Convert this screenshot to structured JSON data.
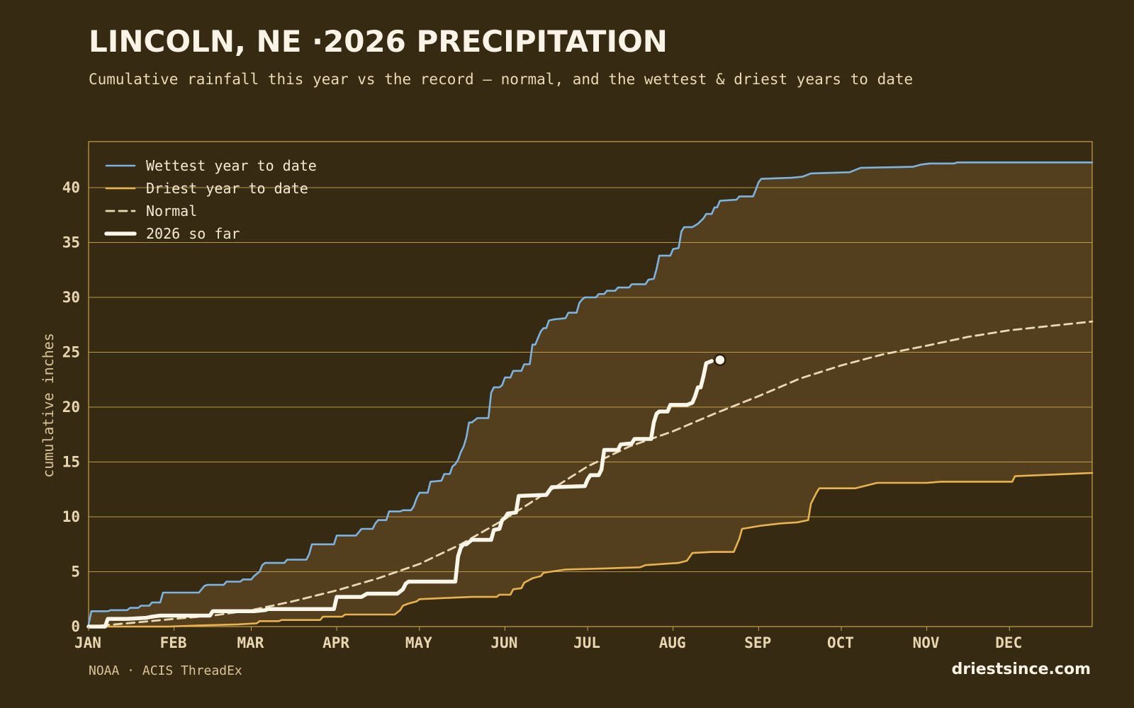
{
  "header": {
    "title": "LINCOLN, NE ·2026 PRECIPITATION",
    "subtitle": "Cumulative rainfall this year vs the record — normal, and the wettest & driest years to date"
  },
  "footer": {
    "source": "NOAA · ACIS ThreadEx",
    "site": "driestsince.com"
  },
  "colors": {
    "background": "#372a13",
    "band": "#533f1e",
    "grid": "#c9a24a",
    "wettest": "#7db3e0",
    "driest": "#e8b34f",
    "normal": "#e9d9b4",
    "current": "#fbf6ea"
  },
  "chart_data": {
    "type": "line",
    "title": "LINCOLN, NE ·2026 PRECIPITATION",
    "xlabel": "",
    "ylabel": "cumulative inches",
    "x_unit": "day of year",
    "xlim": [
      1,
      365
    ],
    "ylim": [
      0,
      40
    ],
    "y_ticks": [
      0,
      5,
      10,
      15,
      20,
      25,
      30,
      35,
      40
    ],
    "x_ticks": [
      {
        "day": 1,
        "label": "JAN"
      },
      {
        "day": 32,
        "label": "FEB"
      },
      {
        "day": 60,
        "label": "MAR"
      },
      {
        "day": 91,
        "label": "APR"
      },
      {
        "day": 121,
        "label": "MAY"
      },
      {
        "day": 152,
        "label": "JUN"
      },
      {
        "day": 182,
        "label": "JUL"
      },
      {
        "day": 213,
        "label": "AUG"
      },
      {
        "day": 244,
        "label": "SEP"
      },
      {
        "day": 274,
        "label": "OCT"
      },
      {
        "day": 305,
        "label": "NOV"
      },
      {
        "day": 335,
        "label": "DEC"
      }
    ],
    "grid": true,
    "legend_position": "top-left",
    "series": [
      {
        "name": "Wettest year to date",
        "style": "solid",
        "points": [
          [
            1,
            0.2
          ],
          [
            2,
            1.4
          ],
          [
            8,
            1.4
          ],
          [
            9,
            1.5
          ],
          [
            15,
            1.5
          ],
          [
            16,
            1.7
          ],
          [
            19,
            1.7
          ],
          [
            20,
            1.9
          ],
          [
            23,
            1.9
          ],
          [
            24,
            2.2
          ],
          [
            27,
            2.2
          ],
          [
            28,
            3.1
          ],
          [
            41,
            3.1
          ],
          [
            42,
            3.4
          ],
          [
            43,
            3.7
          ],
          [
            44,
            3.8
          ],
          [
            50,
            3.8
          ],
          [
            51,
            4.1
          ],
          [
            56,
            4.1
          ],
          [
            57,
            4.3
          ],
          [
            60,
            4.3
          ],
          [
            61,
            4.6
          ],
          [
            63,
            5.0
          ],
          [
            64,
            5.6
          ],
          [
            65,
            5.8
          ],
          [
            72,
            5.8
          ],
          [
            73,
            6.1
          ],
          [
            80,
            6.1
          ],
          [
            81,
            6.6
          ],
          [
            82,
            7.5
          ],
          [
            90,
            7.5
          ],
          [
            91,
            8.3
          ],
          [
            98,
            8.3
          ],
          [
            99,
            8.6
          ],
          [
            100,
            8.9
          ],
          [
            104,
            8.9
          ],
          [
            105,
            9.4
          ],
          [
            106,
            9.7
          ],
          [
            109,
            9.7
          ],
          [
            110,
            10.5
          ],
          [
            114,
            10.5
          ],
          [
            115,
            10.6
          ],
          [
            118,
            10.6
          ],
          [
            119,
            11.0
          ],
          [
            120,
            11.7
          ],
          [
            121,
            12.2
          ],
          [
            124,
            12.2
          ],
          [
            125,
            13.2
          ],
          [
            129,
            13.3
          ],
          [
            130,
            13.9
          ],
          [
            132,
            13.9
          ],
          [
            133,
            14.6
          ],
          [
            134,
            14.8
          ],
          [
            135,
            15.2
          ],
          [
            136,
            15.9
          ],
          [
            137,
            16.4
          ],
          [
            138,
            17.2
          ],
          [
            139,
            18.6
          ],
          [
            140,
            18.6
          ],
          [
            141,
            18.8
          ],
          [
            142,
            19.0
          ],
          [
            146,
            19.0
          ],
          [
            147,
            21.3
          ],
          [
            148,
            21.8
          ],
          [
            150,
            21.8
          ],
          [
            151,
            22.0
          ],
          [
            152,
            22.7
          ],
          [
            154,
            22.7
          ],
          [
            155,
            23.3
          ],
          [
            158,
            23.3
          ],
          [
            159,
            23.9
          ],
          [
            161,
            23.9
          ],
          [
            162,
            25.7
          ],
          [
            163,
            25.7
          ],
          [
            164,
            26.3
          ],
          [
            165,
            26.9
          ],
          [
            166,
            27.2
          ],
          [
            167,
            27.2
          ],
          [
            168,
            27.9
          ],
          [
            170,
            28.0
          ],
          [
            174,
            28.1
          ],
          [
            175,
            28.6
          ],
          [
            178,
            28.6
          ],
          [
            179,
            29.5
          ],
          [
            180,
            29.8
          ],
          [
            181,
            30.0
          ],
          [
            185,
            30.0
          ],
          [
            186,
            30.3
          ],
          [
            188,
            30.3
          ],
          [
            189,
            30.6
          ],
          [
            192,
            30.6
          ],
          [
            193,
            30.9
          ],
          [
            197,
            30.9
          ],
          [
            198,
            31.2
          ],
          [
            203,
            31.2
          ],
          [
            204,
            31.6
          ],
          [
            206,
            31.7
          ],
          [
            207,
            32.6
          ],
          [
            208,
            33.8
          ],
          [
            212,
            33.8
          ],
          [
            213,
            34.4
          ],
          [
            215,
            34.5
          ],
          [
            216,
            36.0
          ],
          [
            217,
            36.4
          ],
          [
            220,
            36.4
          ],
          [
            222,
            36.7
          ],
          [
            224,
            37.2
          ],
          [
            225,
            37.6
          ],
          [
            227,
            37.6
          ],
          [
            228,
            38.2
          ],
          [
            229,
            38.2
          ],
          [
            230,
            38.8
          ],
          [
            236,
            38.9
          ],
          [
            237,
            39.2
          ],
          [
            242,
            39.2
          ],
          [
            243,
            39.8
          ],
          [
            244,
            40.5
          ],
          [
            245,
            40.8
          ],
          [
            256,
            40.9
          ],
          [
            260,
            41.0
          ],
          [
            263,
            41.3
          ],
          [
            277,
            41.4
          ],
          [
            281,
            41.8
          ],
          [
            300,
            41.9
          ],
          [
            303,
            42.1
          ],
          [
            306,
            42.2
          ],
          [
            315,
            42.2
          ],
          [
            316,
            42.3
          ],
          [
            365,
            42.3
          ]
        ]
      },
      {
        "name": "Driest year to date",
        "style": "solid",
        "points": [
          [
            1,
            0.0
          ],
          [
            30,
            0.0
          ],
          [
            40,
            0.1
          ],
          [
            55,
            0.2
          ],
          [
            62,
            0.3
          ],
          [
            63,
            0.5
          ],
          [
            70,
            0.5
          ],
          [
            71,
            0.6
          ],
          [
            85,
            0.6
          ],
          [
            86,
            0.9
          ],
          [
            93,
            0.9
          ],
          [
            94,
            1.1
          ],
          [
            112,
            1.1
          ],
          [
            114,
            1.5
          ],
          [
            115,
            1.9
          ],
          [
            117,
            2.1
          ],
          [
            120,
            2.3
          ],
          [
            121,
            2.5
          ],
          [
            130,
            2.6
          ],
          [
            140,
            2.7
          ],
          [
            149,
            2.7
          ],
          [
            150,
            2.9
          ],
          [
            154,
            2.9
          ],
          [
            155,
            3.4
          ],
          [
            158,
            3.5
          ],
          [
            159,
            4.0
          ],
          [
            162,
            4.4
          ],
          [
            165,
            4.6
          ],
          [
            166,
            4.9
          ],
          [
            174,
            5.2
          ],
          [
            188,
            5.3
          ],
          [
            201,
            5.4
          ],
          [
            203,
            5.6
          ],
          [
            215,
            5.8
          ],
          [
            218,
            6.0
          ],
          [
            220,
            6.7
          ],
          [
            227,
            6.8
          ],
          [
            235,
            6.8
          ],
          [
            237,
            8.0
          ],
          [
            238,
            8.9
          ],
          [
            245,
            9.2
          ],
          [
            252,
            9.4
          ],
          [
            258,
            9.5
          ],
          [
            262,
            9.7
          ],
          [
            263,
            11.2
          ],
          [
            265,
            12.2
          ],
          [
            266,
            12.6
          ],
          [
            279,
            12.6
          ],
          [
            287,
            13.1
          ],
          [
            305,
            13.1
          ],
          [
            310,
            13.2
          ],
          [
            336,
            13.2
          ],
          [
            337,
            13.7
          ],
          [
            365,
            14.0
          ]
        ]
      },
      {
        "name": "Normal",
        "style": "dashed",
        "points": [
          [
            1,
            0.0
          ],
          [
            15,
            0.3
          ],
          [
            32,
            0.7
          ],
          [
            46,
            1.0
          ],
          [
            60,
            1.5
          ],
          [
            75,
            2.3
          ],
          [
            91,
            3.3
          ],
          [
            106,
            4.4
          ],
          [
            121,
            5.7
          ],
          [
            136,
            7.5
          ],
          [
            152,
            9.8
          ],
          [
            167,
            12.2
          ],
          [
            182,
            14.6
          ],
          [
            197,
            16.4
          ],
          [
            213,
            17.8
          ],
          [
            228,
            19.4
          ],
          [
            244,
            21.0
          ],
          [
            259,
            22.6
          ],
          [
            274,
            23.8
          ],
          [
            289,
            24.8
          ],
          [
            305,
            25.6
          ],
          [
            320,
            26.4
          ],
          [
            335,
            27.0
          ],
          [
            350,
            27.4
          ],
          [
            365,
            27.8
          ]
        ]
      },
      {
        "name": "2026 so far",
        "style": "bold",
        "points": [
          [
            1,
            0.0
          ],
          [
            7,
            0.0
          ],
          [
            8,
            0.7
          ],
          [
            15,
            0.7
          ],
          [
            22,
            0.8
          ],
          [
            24,
            0.9
          ],
          [
            27,
            1.0
          ],
          [
            35,
            1.0
          ],
          [
            45,
            1.0
          ],
          [
            46,
            1.4
          ],
          [
            61,
            1.4
          ],
          [
            65,
            1.5
          ],
          [
            66,
            1.6
          ],
          [
            90,
            1.6
          ],
          [
            91,
            2.7
          ],
          [
            100,
            2.7
          ],
          [
            102,
            3.0
          ],
          [
            113,
            3.0
          ],
          [
            115,
            3.4
          ],
          [
            116,
            3.9
          ],
          [
            117,
            4.1
          ],
          [
            134,
            4.1
          ],
          [
            135,
            6.4
          ],
          [
            136,
            7.2
          ],
          [
            137,
            7.5
          ],
          [
            138,
            7.5
          ],
          [
            140,
            7.9
          ],
          [
            147,
            7.9
          ],
          [
            148,
            8.8
          ],
          [
            150,
            8.9
          ],
          [
            151,
            9.7
          ],
          [
            152,
            9.9
          ],
          [
            153,
            10.3
          ],
          [
            156,
            10.4
          ],
          [
            157,
            11.9
          ],
          [
            167,
            12.0
          ],
          [
            169,
            12.7
          ],
          [
            181,
            12.8
          ],
          [
            182,
            13.4
          ],
          [
            183,
            13.8
          ],
          [
            186,
            13.8
          ],
          [
            187,
            14.3
          ],
          [
            188,
            16.1
          ],
          [
            193,
            16.1
          ],
          [
            194,
            16.6
          ],
          [
            198,
            16.7
          ],
          [
            199,
            17.1
          ],
          [
            205,
            17.1
          ],
          [
            206,
            18.6
          ],
          [
            207,
            19.4
          ],
          [
            208,
            19.6
          ],
          [
            211,
            19.6
          ],
          [
            212,
            20.2
          ],
          [
            218,
            20.2
          ],
          [
            220,
            20.4
          ],
          [
            221,
            21.0
          ],
          [
            222,
            21.8
          ],
          [
            223,
            21.8
          ],
          [
            224,
            22.8
          ],
          [
            225,
            24.0
          ],
          [
            227,
            24.2
          ]
        ],
        "end_marker": [
          230,
          24.3
        ]
      }
    ]
  }
}
